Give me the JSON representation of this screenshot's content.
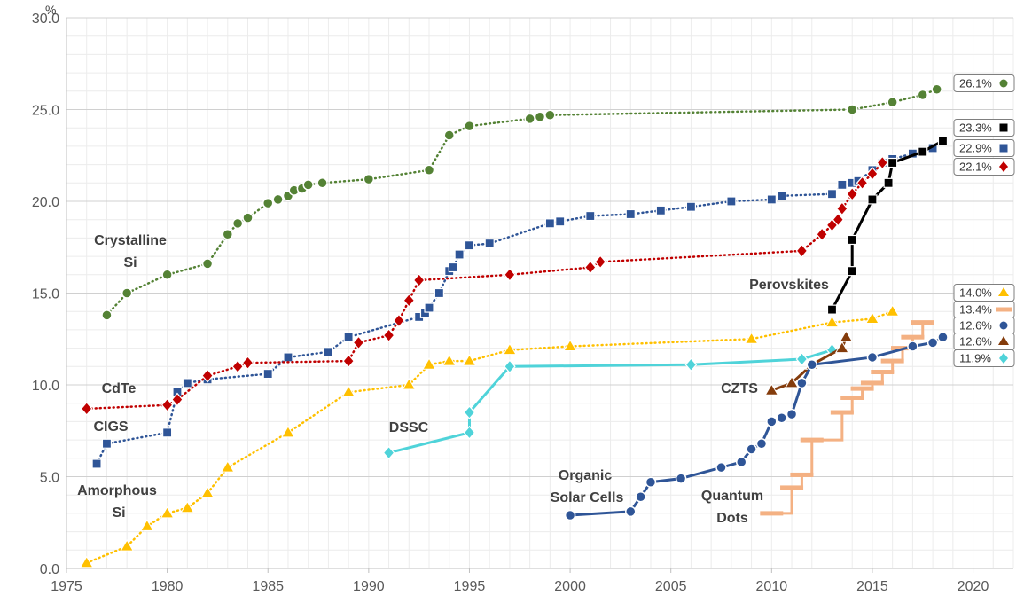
{
  "chart_data": {
    "type": "line",
    "title": "",
    "xlabel": "",
    "ylabel": "",
    "y_unit": "%",
    "xlim": [
      1975,
      2022
    ],
    "ylim": [
      0,
      30
    ],
    "x_ticks": [
      "1975",
      "1980",
      "1985",
      "1990",
      "1995",
      "2000",
      "2005",
      "2010",
      "2015",
      "2020"
    ],
    "y_ticks": [
      "0.0",
      "5.0",
      "10.0",
      "15.0",
      "20.0",
      "25.0",
      "30.0"
    ],
    "grid": true,
    "series": [
      {
        "name": "Crystalline Si",
        "color": "#548235",
        "marker": "circle",
        "line": "dotted",
        "end_label": "26.1%",
        "points": [
          [
            1977,
            13.8
          ],
          [
            1978,
            15.0
          ],
          [
            1980,
            16.0
          ],
          [
            1982,
            16.6
          ],
          [
            1983,
            18.2
          ],
          [
            1983.5,
            18.8
          ],
          [
            1984,
            19.1
          ],
          [
            1985,
            19.9
          ],
          [
            1985.5,
            20.1
          ],
          [
            1986,
            20.3
          ],
          [
            1986.3,
            20.6
          ],
          [
            1986.7,
            20.7
          ],
          [
            1987,
            20.9
          ],
          [
            1987.7,
            21.0
          ],
          [
            1990,
            21.2
          ],
          [
            1993,
            21.7
          ],
          [
            1994,
            23.6
          ],
          [
            1995,
            24.1
          ],
          [
            1998,
            24.5
          ],
          [
            1998.5,
            24.6
          ],
          [
            1999,
            24.7
          ],
          [
            2014,
            25.0
          ],
          [
            2016,
            25.4
          ],
          [
            2017.5,
            25.8
          ],
          [
            2018.2,
            26.1
          ]
        ]
      },
      {
        "name": "Perovskites",
        "color": "#000000",
        "marker": "square",
        "line": "solid",
        "end_label": "23.3%",
        "points": [
          [
            2013,
            14.1
          ],
          [
            2014,
            16.2
          ],
          [
            2014,
            17.9
          ],
          [
            2015,
            20.1
          ],
          [
            2015.8,
            21.0
          ],
          [
            2016,
            22.1
          ],
          [
            2017.5,
            22.7
          ],
          [
            2018.5,
            23.3
          ]
        ]
      },
      {
        "name": "CIGS",
        "color": "#2F5597",
        "marker": "square",
        "line": "dotted",
        "end_label": "22.9%",
        "points": [
          [
            1976.5,
            5.7
          ],
          [
            1977,
            6.8
          ],
          [
            1980,
            7.4
          ],
          [
            1980.5,
            9.6
          ],
          [
            1981,
            10.1
          ],
          [
            1982,
            10.3
          ],
          [
            1985,
            10.6
          ],
          [
            1986,
            11.5
          ],
          [
            1988,
            11.8
          ],
          [
            1989,
            12.6
          ],
          [
            1992.5,
            13.7
          ],
          [
            1992.8,
            13.9
          ],
          [
            1993,
            14.2
          ],
          [
            1993.5,
            15.0
          ],
          [
            1994,
            16.2
          ],
          [
            1994.2,
            16.4
          ],
          [
            1994.5,
            17.1
          ],
          [
            1995,
            17.6
          ],
          [
            1996,
            17.7
          ],
          [
            1999,
            18.8
          ],
          [
            1999.5,
            18.9
          ],
          [
            2001,
            19.2
          ],
          [
            2003,
            19.3
          ],
          [
            2004.5,
            19.5
          ],
          [
            2006,
            19.7
          ],
          [
            2008,
            20.0
          ],
          [
            2010,
            20.1
          ],
          [
            2010.5,
            20.3
          ],
          [
            2013,
            20.4
          ],
          [
            2013.5,
            20.9
          ],
          [
            2014,
            21.0
          ],
          [
            2014.3,
            21.1
          ],
          [
            2015,
            21.7
          ],
          [
            2015.5,
            22.1
          ],
          [
            2016,
            22.3
          ],
          [
            2017,
            22.6
          ],
          [
            2018,
            22.9
          ]
        ]
      },
      {
        "name": "CdTe",
        "color": "#C00000",
        "marker": "diamond",
        "line": "dotted",
        "end_label": "22.1%",
        "points": [
          [
            1976,
            8.7
          ],
          [
            1980,
            8.9
          ],
          [
            1980.5,
            9.2
          ],
          [
            1982,
            10.5
          ],
          [
            1983.5,
            11.0
          ],
          [
            1984,
            11.2
          ],
          [
            1989,
            11.3
          ],
          [
            1989.5,
            12.3
          ],
          [
            1991,
            12.7
          ],
          [
            1991.5,
            13.5
          ],
          [
            1992,
            14.6
          ],
          [
            1992.5,
            15.7
          ],
          [
            1997,
            16.0
          ],
          [
            2001,
            16.4
          ],
          [
            2001.5,
            16.7
          ],
          [
            2011.5,
            17.3
          ],
          [
            2012.5,
            18.2
          ],
          [
            2013,
            18.7
          ],
          [
            2013.3,
            19.0
          ],
          [
            2013.5,
            19.6
          ],
          [
            2014,
            20.4
          ],
          [
            2014.5,
            21.0
          ],
          [
            2015,
            21.5
          ],
          [
            2015.5,
            22.1
          ]
        ]
      },
      {
        "name": "Amorphous Si",
        "color": "#FFC000",
        "marker": "triangle",
        "line": "dotted",
        "end_label": "14.0%",
        "points": [
          [
            1976,
            0.3
          ],
          [
            1978,
            1.2
          ],
          [
            1979,
            2.3
          ],
          [
            1980,
            3.0
          ],
          [
            1981,
            3.3
          ],
          [
            1982,
            4.1
          ],
          [
            1983,
            5.5
          ],
          [
            1986,
            7.4
          ],
          [
            1989,
            9.6
          ],
          [
            1992,
            10.0
          ],
          [
            1993,
            11.1
          ],
          [
            1994,
            11.3
          ],
          [
            1995,
            11.3
          ],
          [
            1997,
            11.9
          ],
          [
            2000,
            12.1
          ],
          [
            2009,
            12.5
          ],
          [
            2013,
            13.4
          ],
          [
            2015,
            13.6
          ],
          [
            2016,
            14.0
          ]
        ]
      },
      {
        "name": "Quantum Dots",
        "color": "#F4B183",
        "marker": "dash",
        "line": "solid",
        "end_label": "13.4%",
        "points": [
          [
            2010,
            3.0
          ],
          [
            2011,
            4.4
          ],
          [
            2011.5,
            5.1
          ],
          [
            2012,
            7.0
          ],
          [
            2013.5,
            8.5
          ],
          [
            2014,
            9.3
          ],
          [
            2014.5,
            9.8
          ],
          [
            2015,
            10.1
          ],
          [
            2015.5,
            10.7
          ],
          [
            2016,
            11.3
          ],
          [
            2016.5,
            12.0
          ],
          [
            2017,
            12.6
          ],
          [
            2017.5,
            13.4
          ]
        ]
      },
      {
        "name": "Organic Solar Cells",
        "color": "#2F5597",
        "marker": "circle",
        "line": "solid",
        "end_label": "12.6%",
        "points": [
          [
            2000,
            2.9
          ],
          [
            2003,
            3.1
          ],
          [
            2003.5,
            3.9
          ],
          [
            2004,
            4.7
          ],
          [
            2005.5,
            4.9
          ],
          [
            2007.5,
            5.5
          ],
          [
            2008.5,
            5.8
          ],
          [
            2009,
            6.5
          ],
          [
            2009.5,
            6.8
          ],
          [
            2010,
            8.0
          ],
          [
            2010.5,
            8.2
          ],
          [
            2011,
            8.4
          ],
          [
            2011.5,
            10.1
          ],
          [
            2012,
            11.1
          ],
          [
            2015,
            11.5
          ],
          [
            2017,
            12.1
          ],
          [
            2018,
            12.3
          ],
          [
            2018.5,
            12.6
          ]
        ]
      },
      {
        "name": "CZTS",
        "color": "#843C0C",
        "marker": "triangle",
        "line": "solid",
        "end_label": "12.6%",
        "points": [
          [
            2010,
            9.7
          ],
          [
            2011,
            10.1
          ],
          [
            2012,
            11.1
          ],
          [
            2013.5,
            12.0
          ],
          [
            2013.7,
            12.6
          ]
        ]
      },
      {
        "name": "DSSC",
        "color": "#4FD3D9",
        "marker": "diamond",
        "line": "solid",
        "end_label": "11.9%",
        "points": [
          [
            1991,
            6.3
          ],
          [
            1995,
            7.4
          ],
          [
            1995,
            8.5
          ],
          [
            1997,
            11.0
          ],
          [
            2006,
            11.1
          ],
          [
            2011.5,
            11.4
          ],
          [
            2013,
            11.9
          ]
        ]
      }
    ],
    "annotations": [
      {
        "lines": [
          "Crystalline",
          "Si"
        ],
        "series": "Crystalline Si"
      },
      {
        "lines": [
          "Perovskites"
        ],
        "series": "Perovskites"
      },
      {
        "lines": [
          "CdTe"
        ],
        "series": "CdTe"
      },
      {
        "lines": [
          "CIGS"
        ],
        "series": "CIGS"
      },
      {
        "lines": [
          "Amorphous",
          "Si"
        ],
        "series": "Amorphous Si"
      },
      {
        "lines": [
          "DSSC"
        ],
        "series": "DSSC"
      },
      {
        "lines": [
          "CZTS"
        ],
        "series": "CZTS"
      },
      {
        "lines": [
          "Organic",
          "Solar Cells"
        ],
        "series": "Organic Solar Cells"
      },
      {
        "lines": [
          "Quantum",
          "Dots"
        ],
        "series": "Quantum Dots"
      }
    ]
  }
}
